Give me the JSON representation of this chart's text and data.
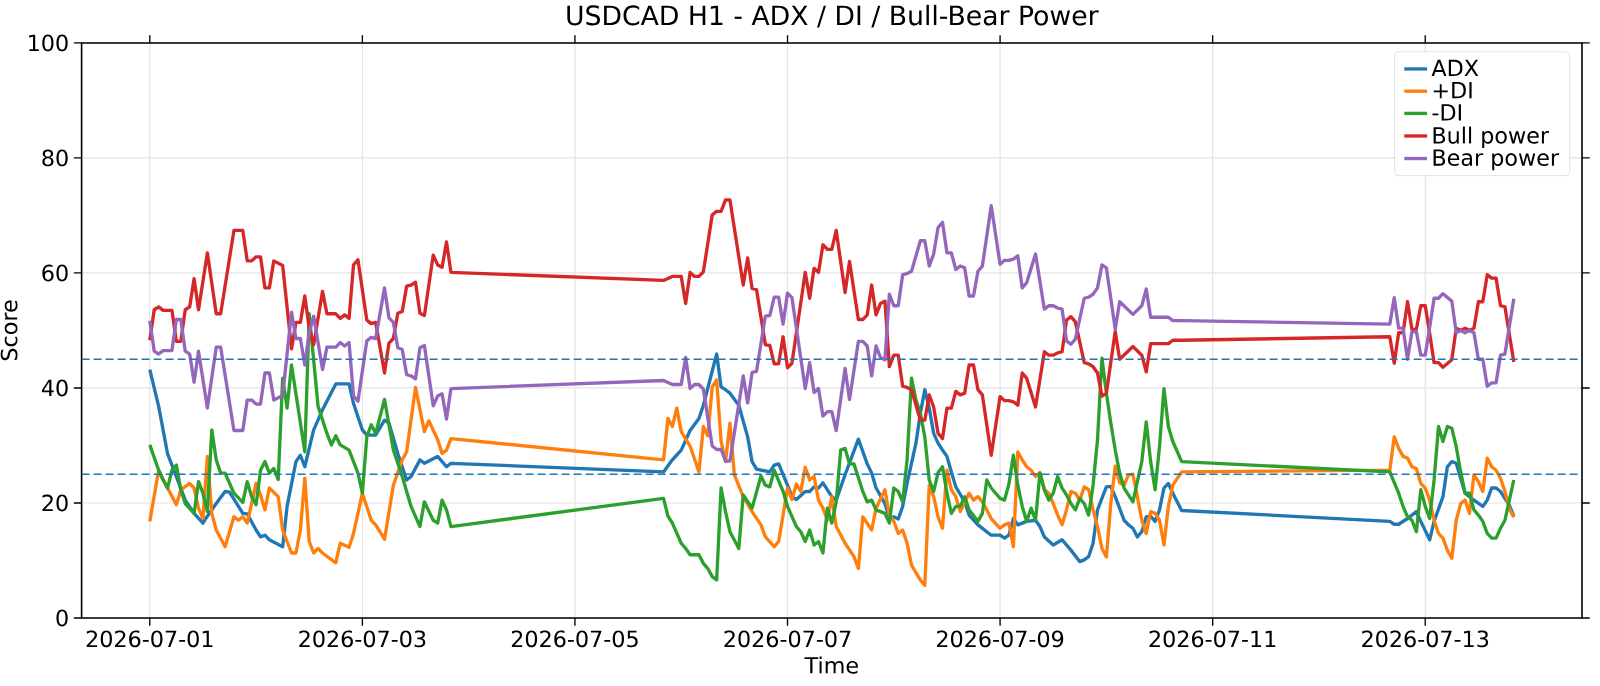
{
  "chart_data": {
    "type": "line",
    "title": "USDCAD H1 - ADX / DI / Bull-Bear Power",
    "xlabel": "Time",
    "ylabel": "Score",
    "xlim": [
      "2026-06-30T08:36",
      "2026-07-14T11:24"
    ],
    "xticks": [
      "2026-07-01",
      "2026-07-03",
      "2026-07-05",
      "2026-07-07",
      "2026-07-09",
      "2026-07-11",
      "2026-07-13"
    ],
    "ylim": [
      0,
      100
    ],
    "yticks": [
      0,
      20,
      40,
      60,
      80,
      100
    ],
    "grid": true,
    "legend": "top right",
    "x": [
      "2026-07-01T00:00",
      "2026-07-01T01:00",
      "2026-07-01T02:00",
      "2026-07-01T03:00",
      "2026-07-01T05:00",
      "2026-07-01T06:00",
      "2026-07-01T07:00",
      "2026-07-01T08:00",
      "2026-07-01T09:00",
      "2026-07-01T10:00",
      "2026-07-01T11:00",
      "2026-07-01T13:00",
      "2026-07-01T15:00",
      "2026-07-01T16:00",
      "2026-07-01T19:00",
      "2026-07-01T21:00",
      "2026-07-01T22:00",
      "2026-07-01T23:00",
      "2026-07-02T00:00",
      "2026-07-02T01:00",
      "2026-07-02T02:00",
      "2026-07-02T03:00",
      "2026-07-02T04:00",
      "2026-07-02T06:00",
      "2026-07-02T08:00",
      "2026-07-02T09:00",
      "2026-07-02T10:00",
      "2026-07-02T11:00",
      "2026-07-02T12:00",
      "2026-07-02T13:00",
      "2026-07-02T15:00",
      "2026-07-02T16:00",
      "2026-07-02T18:00",
      "2026-07-02T19:00",
      "2026-07-02T20:00",
      "2026-07-02T21:00",
      "2026-07-02T22:00",
      "2026-07-02T23:00",
      "2026-07-03T01:00",
      "2026-07-03T02:00",
      "2026-07-03T03:00",
      "2026-07-03T05:00",
      "2026-07-03T06:00",
      "2026-07-03T07:00",
      "2026-07-03T08:00",
      "2026-07-03T09:00",
      "2026-07-03T10:00",
      "2026-07-03T11:00",
      "2026-07-03T12:00",
      "2026-07-03T13:00",
      "2026-07-03T14:00",
      "2026-07-03T16:00",
      "2026-07-03T17:00",
      "2026-07-03T18:00",
      "2026-07-03T19:00",
      "2026-07-03T20:00",
      "2026-07-05T20:00",
      "2026-07-05T22:00",
      "2026-07-06T00:00",
      "2026-07-06T01:00",
      "2026-07-06T02:00",
      "2026-07-06T03:00",
      "2026-07-06T04:00",
      "2026-07-06T05:00",
      "2026-07-06T07:00",
      "2026-07-06T08:00",
      "2026-07-06T09:00",
      "2026-07-06T10:00",
      "2026-07-06T11:00",
      "2026-07-06T14:00",
      "2026-07-06T15:00",
      "2026-07-06T16:00",
      "2026-07-06T17:00",
      "2026-07-06T19:00",
      "2026-07-06T20:00",
      "2026-07-06T21:00",
      "2026-07-06T22:00",
      "2026-07-06T23:00",
      "2026-07-07T00:00",
      "2026-07-07T01:00",
      "2026-07-07T04:00",
      "2026-07-07T05:00",
      "2026-07-07T06:00",
      "2026-07-07T07:00",
      "2026-07-07T08:00",
      "2026-07-07T09:00",
      "2026-07-07T10:00",
      "2026-07-07T11:00",
      "2026-07-07T13:00",
      "2026-07-07T14:00",
      "2026-07-07T16:00",
      "2026-07-07T17:00",
      "2026-07-07T18:00",
      "2026-07-07T19:00",
      "2026-07-07T20:00",
      "2026-07-07T21:00",
      "2026-07-07T22:00",
      "2026-07-07T23:00",
      "2026-07-08T00:00",
      "2026-07-08T01:00",
      "2026-07-08T02:00",
      "2026-07-08T03:00",
      "2026-07-08T04:00",
      "2026-07-08T06:00",
      "2026-07-08T07:00",
      "2026-07-08T08:00",
      "2026-07-08T09:00",
      "2026-07-08T10:00",
      "2026-07-08T11:00",
      "2026-07-08T12:00",
      "2026-07-08T13:00",
      "2026-07-08T14:00",
      "2026-07-08T15:00",
      "2026-07-08T16:00",
      "2026-07-08T17:00",
      "2026-07-08T18:00",
      "2026-07-08T19:00",
      "2026-07-08T20:00",
      "2026-07-08T22:00",
      "2026-07-09T00:00",
      "2026-07-09T01:00",
      "2026-07-09T02:00",
      "2026-07-09T03:00",
      "2026-07-09T04:00",
      "2026-07-09T05:00",
      "2026-07-09T06:00",
      "2026-07-09T08:00",
      "2026-07-09T10:00",
      "2026-07-09T11:00",
      "2026-07-09T12:00",
      "2026-07-09T13:00",
      "2026-07-09T14:00",
      "2026-07-09T15:00",
      "2026-07-09T16:00",
      "2026-07-09T17:00",
      "2026-07-09T19:00",
      "2026-07-09T20:00",
      "2026-07-09T21:00",
      "2026-07-09T22:00",
      "2026-07-09T23:00",
      "2026-07-10T00:00",
      "2026-07-10T02:00",
      "2026-07-10T03:00",
      "2026-07-10T06:00",
      "2026-07-10T08:00",
      "2026-07-10T09:00",
      "2026-07-10T10:00",
      "2026-07-10T14:00",
      "2026-07-10T15:00",
      "2026-07-10T17:00",
      "2026-07-12T16:00",
      "2026-07-12T17:00",
      "2026-07-12T18:00",
      "2026-07-12T19:00",
      "2026-07-12T20:00",
      "2026-07-12T21:00",
      "2026-07-12T22:00",
      "2026-07-12T23:00",
      "2026-07-13T00:00",
      "2026-07-13T01:00",
      "2026-07-13T02:00",
      "2026-07-13T03:00",
      "2026-07-13T04:00",
      "2026-07-13T06:00",
      "2026-07-13T07:00",
      "2026-07-13T08:00",
      "2026-07-13T09:00",
      "2026-07-13T10:00",
      "2026-07-13T11:00",
      "2026-07-13T12:00",
      "2026-07-13T13:00",
      "2026-07-13T14:00",
      "2026-07-13T15:00",
      "2026-07-13T16:00",
      "2026-07-13T17:00",
      "2026-07-13T18:00",
      "2026-07-13T20:00"
    ],
    "ref_lines": [
      {
        "axis": "y",
        "value": 45,
        "color": "#1f77b4",
        "line_style": "dashed"
      },
      {
        "axis": "y",
        "value": 25,
        "color": "#1f77b4",
        "line_style": "dashed"
      }
    ],
    "series": [
      {
        "name": "ADX",
        "color": "#1f77b4",
        "x": [
          "2026-07-01T00:00",
          "2026-07-01T02:00",
          "2026-07-01T04:00",
          "2026-07-01T06:00",
          "2026-07-01T08:00",
          "2026-07-01T10:00",
          "2026-07-01T12:00",
          "2026-07-01T13:00",
          "2026-07-01T15:00",
          "2026-07-01T17:00",
          "2026-07-01T18:00",
          "2026-07-01T21:00",
          "2026-07-01T22:00",
          "2026-07-02T00:00",
          "2026-07-02T01:00",
          "2026-07-02T02:00",
          "2026-07-02T03:00",
          "2026-07-02T06:00",
          "2026-07-02T07:00",
          "2026-07-02T09:00",
          "2026-07-02T10:00",
          "2026-07-02T11:00",
          "2026-07-02T13:00",
          "2026-07-02T15:00",
          "2026-07-02T18:00",
          "2026-07-02T21:00",
          "2026-07-02T22:00",
          "2026-07-03T00:00",
          "2026-07-03T01:00",
          "2026-07-03T03:00",
          "2026-07-03T05:00",
          "2026-07-03T06:00",
          "2026-07-03T08:00",
          "2026-07-03T10:00",
          "2026-07-03T11:00",
          "2026-07-03T13:00",
          "2026-07-03T14:00",
          "2026-07-03T17:00",
          "2026-07-03T18:00",
          "2026-07-03T19:00",
          "2026-07-03T20:00",
          "2026-07-05T20:00",
          "2026-07-05T22:00",
          "2026-07-06T00:00",
          "2026-07-06T02:00",
          "2026-07-06T04:00",
          "2026-07-06T05:00",
          "2026-07-06T08:00",
          "2026-07-06T09:00",
          "2026-07-06T10:00",
          "2026-07-06T11:00",
          "2026-07-06T13:00",
          "2026-07-06T15:00",
          "2026-07-06T16:00",
          "2026-07-06T17:00",
          "2026-07-06T20:00",
          "2026-07-06T21:00",
          "2026-07-06T22:00",
          "2026-07-07T00:00",
          "2026-07-07T01:00",
          "2026-07-07T02:00",
          "2026-07-07T04:00",
          "2026-07-07T05:00",
          "2026-07-07T06:00",
          "2026-07-07T07:00",
          "2026-07-07T08:00",
          "2026-07-07T10:00",
          "2026-07-07T11:00",
          "2026-07-07T13:00",
          "2026-07-07T16:00",
          "2026-07-07T18:00",
          "2026-07-07T19:00",
          "2026-07-07T20:00",
          "2026-07-07T22:00",
          "2026-07-07T23:00",
          "2026-07-08T00:00",
          "2026-07-08T01:00",
          "2026-07-08T02:00",
          "2026-07-08T03:00",
          "2026-07-08T05:00",
          "2026-07-08T06:00",
          "2026-07-08T07:00",
          "2026-07-08T08:00",
          "2026-07-08T09:00",
          "2026-07-08T10:00",
          "2026-07-08T11:00",
          "2026-07-08T12:00",
          "2026-07-08T13:00",
          "2026-07-08T14:00",
          "2026-07-08T16:00",
          "2026-07-08T17:00",
          "2026-07-08T19:00",
          "2026-07-08T21:00",
          "2026-07-08T22:00",
          "2026-07-09T00:00",
          "2026-07-09T01:00",
          "2026-07-09T02:00",
          "2026-07-09T03:00",
          "2026-07-09T04:00",
          "2026-07-09T06:00",
          "2026-07-09T08:00",
          "2026-07-09T09:00",
          "2026-07-09T10:00",
          "2026-07-09T12:00",
          "2026-07-09T14:00",
          "2026-07-09T16:00",
          "2026-07-09T18:00",
          "2026-07-09T19:00",
          "2026-07-09T20:00",
          "2026-07-09T21:00",
          "2026-07-09T22:00",
          "2026-07-10T00:00",
          "2026-07-10T01:00",
          "2026-07-10T02:00",
          "2026-07-10T04:00",
          "2026-07-10T05:00",
          "2026-07-10T06:00",
          "2026-07-10T07:00",
          "2026-07-10T08:00",
          "2026-07-10T09:00",
          "2026-07-10T10:00",
          "2026-07-10T11:00",
          "2026-07-10T12:00",
          "2026-07-10T13:00",
          "2026-07-10T14:00",
          "2026-07-10T15:00",
          "2026-07-10T17:00",
          "2026-07-12T16:00",
          "2026-07-12T17:00",
          "2026-07-12T18:00",
          "2026-07-12T20:00",
          "2026-07-12T22:00",
          "2026-07-12T23:00",
          "2026-07-13T01:00",
          "2026-07-13T02:00",
          "2026-07-13T04:00",
          "2026-07-13T05:00",
          "2026-07-13T06:00",
          "2026-07-13T07:00",
          "2026-07-13T08:00",
          "2026-07-13T09:00",
          "2026-07-13T11:00",
          "2026-07-13T13:00",
          "2026-07-13T14:00",
          "2026-07-13T15:00",
          "2026-07-13T16:00",
          "2026-07-13T17:00",
          "2026-07-13T19:00",
          "2026-07-13T20:00"
        ],
        "values": [
          43.2,
          36.8,
          28.6,
          24.6,
          20.5,
          18.2,
          16.5,
          17.7,
          19.9,
          22,
          21.9,
          18.2,
          18.1,
          15.3,
          14.1,
          14.4,
          13.6,
          12.4,
          19.4,
          27.2,
          28.3,
          26.3,
          32.7,
          36.2,
          40.7,
          40.7,
          37.3,
          32.7,
          31.8,
          31.8,
          34.4,
          33.9,
          28.6,
          24,
          24.6,
          27.5,
          26.9,
          28.1,
          27.2,
          26.3,
          26.9,
          25.4,
          27.5,
          29.2,
          32.6,
          34.7,
          37,
          45.9,
          40.2,
          39.7,
          39.1,
          37,
          31.5,
          27.2,
          25.9,
          25.4,
          26.6,
          26.8,
          23.1,
          21.1,
          20.6,
          22,
          22,
          22.8,
          22.6,
          23.5,
          21.1,
          20.5,
          24.9,
          31.1,
          26.8,
          25.2,
          22.6,
          19.9,
          17.3,
          17.6,
          17.2,
          19.4,
          23.4,
          30.4,
          35.6,
          39.7,
          36.5,
          32.1,
          30.4,
          29.2,
          28.1,
          25.4,
          22.8,
          20.2,
          17.9,
          16.2,
          15,
          14.4,
          14.4,
          13.9,
          14.4,
          17.3,
          16.2,
          16.8,
          17,
          15.9,
          14.1,
          12.7,
          13.6,
          11.8,
          9.8,
          10.1,
          10.7,
          13,
          18.8,
          22.8,
          22.9,
          21.1,
          17,
          16.2,
          15.6,
          14.1,
          15,
          17.6,
          17.7,
          16.8,
          18.8,
          22.6,
          23.4,
          21.7,
          18.7,
          16.8,
          16.3,
          16.3,
          17.3,
          18.5,
          16.8,
          13.6,
          16.8,
          21.1,
          26.3,
          27.2,
          26.9,
          24.3,
          21.7,
          20.5,
          19.4,
          20.5,
          22.6,
          22.6,
          22,
          19.6,
          17.7
        ]
      },
      {
        "name": "+DI",
        "color": "#ff7f0e",
        "x": [
          "2026-07-01T00:00",
          "2026-07-01T02:00",
          "2026-07-01T04:00",
          "2026-07-01T06:00",
          "2026-07-01T07:00",
          "2026-07-01T09:00",
          "2026-07-01T10:00",
          "2026-07-01T11:00",
          "2026-07-01T12:00",
          "2026-07-01T13:00",
          "2026-07-01T14:00",
          "2026-07-01T15:00",
          "2026-07-01T17:00",
          "2026-07-01T19:00",
          "2026-07-01T20:00",
          "2026-07-01T21:00",
          "2026-07-01T22:00",
          "2026-07-02T00:00",
          "2026-07-02T01:00",
          "2026-07-02T02:00",
          "2026-07-02T03:00",
          "2026-07-02T05:00",
          "2026-07-02T06:00",
          "2026-07-02T08:00",
          "2026-07-02T09:00",
          "2026-07-02T10:00",
          "2026-07-02T11:00",
          "2026-07-02T12:00",
          "2026-07-02T13:00",
          "2026-07-02T14:00",
          "2026-07-02T15:00",
          "2026-07-02T18:00",
          "2026-07-02T19:00",
          "2026-07-02T21:00",
          "2026-07-02T22:00",
          "2026-07-03T00:00",
          "2026-07-03T02:00",
          "2026-07-03T03:00",
          "2026-07-03T05:00",
          "2026-07-03T07:00",
          "2026-07-03T09:00",
          "2026-07-03T10:00",
          "2026-07-03T12:00",
          "2026-07-03T14:00",
          "2026-07-03T15:00",
          "2026-07-03T17:00",
          "2026-07-03T18:00",
          "2026-07-03T19:00",
          "2026-07-03T20:00",
          "2026-07-05T20:00",
          "2026-07-05T21:00",
          "2026-07-05T22:00",
          "2026-07-05T23:00",
          "2026-07-06T00:00",
          "2026-07-06T02:00",
          "2026-07-06T04:00",
          "2026-07-06T05:00",
          "2026-07-06T06:00",
          "2026-07-06T07:00",
          "2026-07-06T08:00",
          "2026-07-06T09:00",
          "2026-07-06T10:00",
          "2026-07-06T11:00",
          "2026-07-06T12:00",
          "2026-07-06T14:00",
          "2026-07-06T16:00",
          "2026-07-06T18:00",
          "2026-07-06T19:00",
          "2026-07-06T21:00",
          "2026-07-06T22:00",
          "2026-07-06T23:00",
          "2026-07-07T00:00",
          "2026-07-07T01:00",
          "2026-07-07T02:00",
          "2026-07-07T03:00",
          "2026-07-07T04:00",
          "2026-07-07T05:00",
          "2026-07-07T06:00",
          "2026-07-07T07:00",
          "2026-07-07T08:00",
          "2026-07-07T09:00",
          "2026-07-07T10:00",
          "2026-07-07T11:00",
          "2026-07-07T13:00",
          "2026-07-07T15:00",
          "2026-07-07T16:00",
          "2026-07-07T17:00",
          "2026-07-07T19:00",
          "2026-07-07T20:00",
          "2026-07-07T22:00",
          "2026-07-07T23:00",
          "2026-07-08T00:00",
          "2026-07-08T01:00",
          "2026-07-08T02:00",
          "2026-07-08T03:00",
          "2026-07-08T04:00",
          "2026-07-08T06:00",
          "2026-07-08T07:00",
          "2026-07-08T08:00",
          "2026-07-08T09:00",
          "2026-07-08T10:00",
          "2026-07-08T11:00",
          "2026-07-08T12:00",
          "2026-07-08T13:00",
          "2026-07-08T14:00",
          "2026-07-08T15:00",
          "2026-07-08T17:00",
          "2026-07-08T18:00",
          "2026-07-08T19:00",
          "2026-07-08T20:00",
          "2026-07-08T21:00",
          "2026-07-08T22:00",
          "2026-07-09T00:00",
          "2026-07-09T01:00",
          "2026-07-09T02:00",
          "2026-07-09T03:00",
          "2026-07-09T04:00",
          "2026-07-09T05:00",
          "2026-07-09T06:00",
          "2026-07-09T07:00",
          "2026-07-09T08:00",
          "2026-07-09T09:00",
          "2026-07-09T10:00",
          "2026-07-09T11:00",
          "2026-07-09T12:00",
          "2026-07-09T13:00",
          "2026-07-09T14:00",
          "2026-07-09T15:00",
          "2026-07-09T16:00",
          "2026-07-09T17:00",
          "2026-07-09T18:00",
          "2026-07-09T19:00",
          "2026-07-09T20:00",
          "2026-07-09T21:00",
          "2026-07-09T22:00",
          "2026-07-09T23:00",
          "2026-07-10T00:00",
          "2026-07-10T01:00",
          "2026-07-10T02:00",
          "2026-07-10T03:00",
          "2026-07-10T04:00",
          "2026-07-10T05:00",
          "2026-07-10T06:00",
          "2026-07-10T07:00",
          "2026-07-10T08:00",
          "2026-07-10T09:00",
          "2026-07-10T10:00",
          "2026-07-10T11:00",
          "2026-07-10T12:00",
          "2026-07-10T13:00",
          "2026-07-10T14:00",
          "2026-07-10T15:00",
          "2026-07-10T17:00",
          "2026-07-12T16:00",
          "2026-07-12T17:00",
          "2026-07-12T18:00",
          "2026-07-12T19:00",
          "2026-07-12T20:00",
          "2026-07-12T21:00",
          "2026-07-12T22:00",
          "2026-07-12T23:00",
          "2026-07-13T00:00",
          "2026-07-13T01:00",
          "2026-07-13T02:00",
          "2026-07-13T03:00",
          "2026-07-13T04:00",
          "2026-07-13T05:00",
          "2026-07-13T06:00",
          "2026-07-13T07:00",
          "2026-07-13T08:00",
          "2026-07-13T09:00",
          "2026-07-13T10:00",
          "2026-07-13T11:00",
          "2026-07-13T12:00",
          "2026-07-13T13:00",
          "2026-07-13T14:00",
          "2026-07-13T15:00",
          "2026-07-13T16:00",
          "2026-07-13T17:00",
          "2026-07-13T18:00",
          "2026-07-13T19:00",
          "2026-07-13T20:00"
        ],
        "values": [
          16.8,
          25.7,
          22.6,
          19.7,
          22.3,
          23.4,
          22.6,
          19.1,
          17.3,
          28.1,
          18.2,
          15.3,
          12.4,
          17.6,
          17,
          17.6,
          16.5,
          23.4,
          21.4,
          18.8,
          22.6,
          21.1,
          15.3,
          11.3,
          11.3,
          15.3,
          24.3,
          13.3,
          11.3,
          12.1,
          11.3,
          9.6,
          13,
          12.3,
          14.7,
          21.7,
          17,
          16.2,
          13.7,
          23.1,
          27.5,
          28.9,
          40.1,
          32.4,
          34.3,
          31,
          28.6,
          29.2,
          31.2,
          27.5,
          34.7,
          33.3,
          36.5,
          32.4,
          29.9,
          25.4,
          33.3,
          31.7,
          40.2,
          41.4,
          30.7,
          27.2,
          33.9,
          24.9,
          21.1,
          18.5,
          16.2,
          14.1,
          12.4,
          13.3,
          17.9,
          22.6,
          20.6,
          23.3,
          22,
          26.2,
          24,
          24.6,
          20.5,
          19.1,
          17,
          21.1,
          15.9,
          13,
          10.7,
          8.6,
          17.6,
          15.3,
          19.1,
          22.3,
          17.9,
          16.8,
          14.7,
          15.3,
          13,
          9.2,
          6.6,
          5.7,
          23.1,
          21.1,
          17.6,
          15.6,
          25.7,
          22.3,
          21.1,
          18.5,
          21.7,
          20.5,
          21.1,
          20.2,
          18.8,
          17.3,
          15.6,
          16.2,
          16.5,
          12.4,
          28.9,
          27.5,
          26.3,
          25.7,
          24.6,
          25.3,
          22.3,
          21.7,
          19.9,
          17.9,
          16.2,
          18.8,
          22,
          21.7,
          20.5,
          22.8,
          22.3,
          18.8,
          15.9,
          12.1,
          10.6,
          19.9,
          26.4,
          23.5,
          23.1,
          24.9,
          25,
          21.1,
          17,
          14.7,
          18.5,
          18.2,
          17,
          12.7,
          19.4,
          23.1,
          25.4,
          25.7,
          31.5,
          29.5,
          28.1,
          27.8,
          26.3,
          26,
          23.4,
          22.6,
          20.5,
          17,
          14.7,
          13.9,
          11.8,
          10.4,
          17,
          19.9,
          20.5,
          18.2,
          24.9,
          23.7,
          22,
          27.8,
          26.3,
          25.7,
          24.3,
          22,
          19,
          17.5
        ]
      },
      {
        "name": "-DI",
        "color": "#2ca02c",
        "x": [
          "2026-07-01T00:00",
          "2026-07-01T02:00",
          "2026-07-01T03:00",
          "2026-07-01T04:00",
          "2026-07-01T05:00",
          "2026-07-01T06:00",
          "2026-07-01T07:00",
          "2026-07-01T08:00",
          "2026-07-01T10:00",
          "2026-07-01T11:00",
          "2026-07-01T12:00",
          "2026-07-01T13:00",
          "2026-07-01T14:00",
          "2026-07-01T15:00",
          "2026-07-01T16:00",
          "2026-07-01T17:00",
          "2026-07-01T19:00",
          "2026-07-01T21:00",
          "2026-07-01T22:00",
          "2026-07-01T23:00",
          "2026-07-02T00:00",
          "2026-07-02T01:00",
          "2026-07-02T02:00",
          "2026-07-02T03:00",
          "2026-07-02T04:00",
          "2026-07-02T05:00",
          "2026-07-02T06:00",
          "2026-07-02T07:00",
          "2026-07-02T08:00",
          "2026-07-02T11:00",
          "2026-07-02T12:00",
          "2026-07-02T14:00",
          "2026-07-02T16:00",
          "2026-07-02T17:00",
          "2026-07-02T18:00",
          "2026-07-02T19:00",
          "2026-07-02T21:00",
          "2026-07-02T23:00",
          "2026-07-03T00:00",
          "2026-07-03T01:00",
          "2026-07-03T02:00",
          "2026-07-03T03:00",
          "2026-07-03T05:00",
          "2026-07-03T07:00",
          "2026-07-03T09:00",
          "2026-07-03T11:00",
          "2026-07-03T13:00",
          "2026-07-03T14:00",
          "2026-07-03T16:00",
          "2026-07-03T17:00",
          "2026-07-03T18:00",
          "2026-07-03T19:00",
          "2026-07-03T20:00",
          "2026-07-05T20:00",
          "2026-07-05T21:00",
          "2026-07-05T22:00",
          "2026-07-06T00:00",
          "2026-07-06T01:00",
          "2026-07-06T02:00",
          "2026-07-06T04:00",
          "2026-07-06T05:00",
          "2026-07-06T06:00",
          "2026-07-06T07:00",
          "2026-07-06T08:00",
          "2026-07-06T09:00",
          "2026-07-06T10:00",
          "2026-07-06T11:00",
          "2026-07-06T13:00",
          "2026-07-06T14:00",
          "2026-07-06T16:00",
          "2026-07-06T18:00",
          "2026-07-06T19:00",
          "2026-07-06T20:00",
          "2026-07-06T21:00",
          "2026-07-06T23:00",
          "2026-07-07T00:00",
          "2026-07-07T02:00",
          "2026-07-07T03:00",
          "2026-07-07T04:00",
          "2026-07-07T05:00",
          "2026-07-07T06:00",
          "2026-07-07T07:00",
          "2026-07-07T08:00",
          "2026-07-07T09:00",
          "2026-07-07T10:00",
          "2026-07-07T11:00",
          "2026-07-07T12:00",
          "2026-07-07T13:00",
          "2026-07-07T14:00",
          "2026-07-07T15:00",
          "2026-07-07T17:00",
          "2026-07-07T18:00",
          "2026-07-07T19:00",
          "2026-07-07T20:00",
          "2026-07-07T22:00",
          "2026-07-07T23:00",
          "2026-07-08T00:00",
          "2026-07-08T01:00",
          "2026-07-08T02:00",
          "2026-07-08T03:00",
          "2026-07-08T04:00",
          "2026-07-08T05:00",
          "2026-07-08T06:00",
          "2026-07-08T07:00",
          "2026-07-08T08:00",
          "2026-07-08T09:00",
          "2026-07-08T10:00",
          "2026-07-08T11:00",
          "2026-07-08T12:00",
          "2026-07-08T13:00",
          "2026-07-08T14:00",
          "2026-07-08T15:00",
          "2026-07-08T16:00",
          "2026-07-08T17:00",
          "2026-07-08T19:00",
          "2026-07-08T20:00",
          "2026-07-08T21:00",
          "2026-07-08T22:00",
          "2026-07-08T23:00",
          "2026-07-09T00:00",
          "2026-07-09T01:00",
          "2026-07-09T02:00",
          "2026-07-09T03:00",
          "2026-07-09T04:00",
          "2026-07-09T05:00",
          "2026-07-09T06:00",
          "2026-07-09T07:00",
          "2026-07-09T08:00",
          "2026-07-09T09:00",
          "2026-07-09T10:00",
          "2026-07-09T11:00",
          "2026-07-09T12:00",
          "2026-07-09T13:00",
          "2026-07-09T14:00",
          "2026-07-09T15:00",
          "2026-07-09T16:00",
          "2026-07-09T17:00",
          "2026-07-09T18:00",
          "2026-07-09T19:00",
          "2026-07-09T20:00",
          "2026-07-09T21:00",
          "2026-07-09T22:00",
          "2026-07-09T23:00",
          "2026-07-10T00:00",
          "2026-07-10T01:00",
          "2026-07-10T02:00",
          "2026-07-10T03:00",
          "2026-07-10T04:00",
          "2026-07-10T06:00",
          "2026-07-10T08:00",
          "2026-07-10T09:00",
          "2026-07-10T10:00",
          "2026-07-10T11:00",
          "2026-07-10T12:00",
          "2026-07-10T13:00",
          "2026-07-10T14:00",
          "2026-07-10T15:00",
          "2026-07-10T17:00",
          "2026-07-12T16:00",
          "2026-07-12T18:00",
          "2026-07-12T19:00",
          "2026-07-12T20:00",
          "2026-07-12T21:00",
          "2026-07-12T22:00",
          "2026-07-12T23:00",
          "2026-07-13T00:00",
          "2026-07-13T01:00",
          "2026-07-13T02:00",
          "2026-07-13T03:00",
          "2026-07-13T04:00",
          "2026-07-13T05:00",
          "2026-07-13T06:00",
          "2026-07-13T07:00",
          "2026-07-13T08:00",
          "2026-07-13T09:00",
          "2026-07-13T10:00",
          "2026-07-13T11:00",
          "2026-07-13T12:00",
          "2026-07-13T13:00",
          "2026-07-13T14:00",
          "2026-07-13T15:00",
          "2026-07-13T16:00",
          "2026-07-13T17:00",
          "2026-07-13T18:00",
          "2026-07-13T19:00",
          "2026-07-13T20:00"
        ],
        "values": [
          30.1,
          25.7,
          24,
          22.6,
          25.7,
          26.6,
          22.3,
          19.9,
          18.2,
          23.7,
          21.7,
          18.5,
          32.7,
          27.5,
          25.2,
          25.2,
          21.7,
          20.1,
          23.7,
          21.1,
          19.7,
          25.7,
          27.2,
          25.2,
          26,
          24.1,
          41.7,
          36.5,
          44,
          28.9,
          52.9,
          36.8,
          32.1,
          30.1,
          31.7,
          30.1,
          29.2,
          25.2,
          21.7,
          31.5,
          33.6,
          32.1,
          38,
          29.2,
          24.6,
          19.4,
          15.9,
          20.2,
          17,
          16.5,
          20.5,
          18.8,
          15.9,
          20.8,
          17.7,
          16.5,
          13,
          12.1,
          11,
          11,
          9.5,
          8.6,
          7.2,
          6.6,
          22.6,
          18.5,
          15,
          12.1,
          21.4,
          19.1,
          24.7,
          23.1,
          22.8,
          25.7,
          22,
          19.4,
          15.9,
          15,
          13.3,
          15.3,
          12.7,
          13.3,
          11.3,
          19.1,
          16.5,
          20.2,
          29.2,
          29.5,
          26.8,
          26.8,
          22,
          20.2,
          20.5,
          18.8,
          18.2,
          16.5,
          22.6,
          22,
          20.2,
          27.5,
          41.7,
          37.9,
          35.6,
          31.5,
          24,
          22,
          25.3,
          26.3,
          21.7,
          18.2,
          19.4,
          19.4,
          21.1,
          18.8,
          16.8,
          18.2,
          24,
          22.6,
          21.7,
          20.8,
          20.5,
          23.3,
          28.3,
          23.1,
          19.4,
          16.8,
          19.1,
          17,
          25.2,
          22.3,
          20.5,
          21.7,
          24.6,
          22.6,
          21.4,
          19.9,
          18.8,
          20.8,
          19.9,
          17.9,
          23.1,
          31,
          45.2,
          39.1,
          33.9,
          29.2,
          25.2,
          22.6,
          20.2,
          27.2,
          34.1,
          27.2,
          22.3,
          29.8,
          39.9,
          33.3,
          30.7,
          27.2,
          25.4,
          21.7,
          19.4,
          17.6,
          17,
          15,
          22.3,
          19.4,
          17.3,
          24,
          33.3,
          30.7,
          33.3,
          33,
          29.8,
          25.4,
          21.7,
          21.7,
          18.8,
          17.9,
          16.8,
          14.7,
          13.9,
          13.9,
          15.6,
          17,
          20.5,
          24
        ]
      },
      {
        "name": "Bull power",
        "color": "#d62728",
        "values": [
          48.3,
          53.6,
          54.1,
          53.5,
          53.5,
          48.1,
          48.1,
          53.6,
          54.1,
          59,
          53.6,
          63.5,
          52.9,
          52.9,
          67.4,
          67.4,
          62.1,
          62.1,
          62.8,
          62.8,
          57.4,
          57.4,
          62.1,
          61.3,
          46.8,
          51.4,
          51.4,
          56,
          50.4,
          47.5,
          56.8,
          52.9,
          52.9,
          52.1,
          52.7,
          52.1,
          61.4,
          62.3,
          51.8,
          51.2,
          51.4,
          42.6,
          47.8,
          48.6,
          53,
          53.3,
          57.7,
          57.9,
          58.4,
          53,
          52.6,
          63.1,
          61.4,
          61,
          65.4,
          60.1,
          58.7,
          59.4,
          59.4,
          54.7,
          60.1,
          59.4,
          59.4,
          60.2,
          70.1,
          70.7,
          70.7,
          72.7,
          72.7,
          57.9,
          62.6,
          57.3,
          57.1,
          47.5,
          47.4,
          44.2,
          44.2,
          48.9,
          43.5,
          44.3,
          60.1,
          55.6,
          60.8,
          60.1,
          64.9,
          64.1,
          64.1,
          67.4,
          56.6,
          62,
          51.9,
          51.9,
          52.7,
          57.9,
          52.7,
          54.7,
          55.1,
          43.7,
          45.7,
          45.7,
          40.3,
          40.1,
          39.7,
          34.4,
          34.4,
          38.8,
          36.7,
          32.1,
          31.2,
          36.5,
          36.5,
          39.4,
          38.8,
          39.1,
          44,
          44,
          39.7,
          38.8,
          28.3,
          38.5,
          37.8,
          37.8,
          37.6,
          37,
          42.6,
          41.7,
          36.7,
          46.3,
          45.7,
          45.7,
          46.1,
          46.3,
          51.8,
          52.4,
          51.5,
          44.4,
          44.2,
          43.7,
          42.6,
          38.6,
          39.1,
          49.8,
          45,
          47.2,
          45.7,
          42.8,
          47.7,
          47.7,
          48.3,
          48.3,
          48.9,
          44.3,
          49.6,
          49.6,
          55,
          50.2,
          50.2,
          54.3,
          54.3,
          49.5,
          44.4,
          44.4,
          43.6,
          44.9,
          50.4,
          50,
          50.4,
          50,
          50.4,
          55,
          55,
          59.7,
          59.1,
          59.1,
          54.3,
          54.1,
          44.5
        ]
      },
      {
        "name": "Bear power",
        "color": "#9467bd",
        "values": [
          51.7,
          46.4,
          45.9,
          46.5,
          46.5,
          51.9,
          51.9,
          46.4,
          45.9,
          41,
          46.4,
          36.5,
          47.1,
          47.1,
          32.6,
          32.6,
          37.9,
          37.9,
          37.2,
          37.2,
          42.6,
          42.6,
          37.9,
          38.7,
          53.2,
          48.6,
          48.6,
          44,
          49.6,
          52.5,
          43.2,
          47.1,
          47.1,
          47.9,
          47.3,
          47.9,
          38.6,
          37.7,
          48.2,
          48.8,
          48.6,
          57.4,
          52.2,
          51.4,
          47,
          46.7,
          42.3,
          42.1,
          41.6,
          47,
          47.4,
          36.9,
          38.6,
          39,
          34.6,
          39.9,
          41.3,
          40.6,
          40.6,
          45.3,
          39.9,
          40.6,
          40.6,
          39.8,
          29.9,
          29.3,
          29.3,
          27.3,
          27.3,
          42.1,
          37.4,
          42.7,
          42.9,
          52.5,
          52.6,
          55.8,
          55.8,
          51.1,
          56.5,
          55.7,
          39.9,
          44.4,
          39.2,
          39.9,
          35.1,
          35.9,
          35.9,
          32.6,
          43.4,
          38,
          48.1,
          48.1,
          47.3,
          42.1,
          47.3,
          45.3,
          44.9,
          56.3,
          54.3,
          54.3,
          59.7,
          59.9,
          60.3,
          65.6,
          65.6,
          61.2,
          63.3,
          67.9,
          68.8,
          63.5,
          63.5,
          60.6,
          61.2,
          60.9,
          56,
          56,
          60.3,
          61.2,
          71.7,
          61.5,
          62.2,
          62.2,
          62.4,
          63,
          57.4,
          58.3,
          63.3,
          53.7,
          54.3,
          54.3,
          53.9,
          53.7,
          48.2,
          47.6,
          48.5,
          55.6,
          55.8,
          56.3,
          57.4,
          61.4,
          60.9,
          50.2,
          55,
          52.8,
          54.3,
          57.2,
          52.3,
          52.3,
          51.7,
          51.7,
          51.1,
          55.7,
          50.4,
          50.4,
          45,
          49.8,
          49.8,
          45.7,
          45.7,
          50.5,
          55.6,
          55.6,
          56.4,
          55.1,
          49.6,
          50,
          49.6,
          50,
          49.6,
          45,
          45,
          40.3,
          40.9,
          40.9,
          45.7,
          45.9,
          55.5
        ]
      }
    ]
  }
}
